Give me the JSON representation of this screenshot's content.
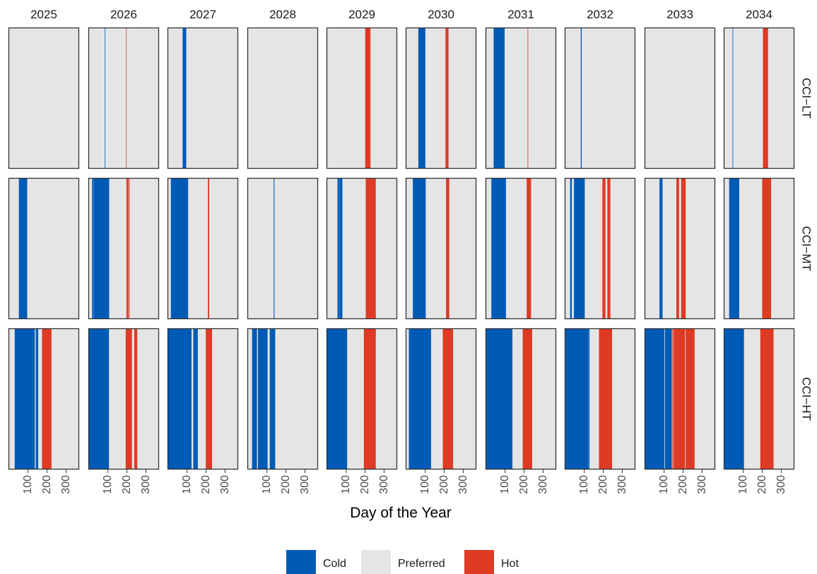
{
  "chart_data": {
    "type": "heatmap",
    "xlabel": "Day of the Year",
    "x_domain": [
      1,
      365
    ],
    "x_ticks": [
      100,
      200,
      300
    ],
    "x_tick_labels": [
      "100",
      "200",
      "300"
    ],
    "years": [
      "2025",
      "2026",
      "2027",
      "2028",
      "2029",
      "2030",
      "2031",
      "2032",
      "2033",
      "2034"
    ],
    "rows": [
      "CCI-LT",
      "CCI-MT",
      "CCI-HT"
    ],
    "row_labels": [
      "CCI−LT",
      "CCI−MT",
      "CCI−HT"
    ],
    "categories": [
      "Cold",
      "Preferred",
      "Hot"
    ],
    "legend": {
      "position": "bottom",
      "items": [
        {
          "key": "cold",
          "label": "Cold"
        },
        {
          "key": "preferred",
          "label": "Preferred"
        },
        {
          "key": "hot",
          "label": "Hot"
        }
      ]
    },
    "colors": {
      "Cold": "#005BB7",
      "Preferred": "#E5E5E5",
      "Hot": "#DE3A24"
    },
    "panels": {
      "CCI-LT": {
        "2025": {
          "cold": [],
          "hot": []
        },
        "2026": {
          "cold": [
            [
              84,
              86
            ]
          ],
          "hot": [
            [
              196,
              197
            ]
          ]
        },
        "2027": {
          "cold": [
            [
              77,
              95
            ]
          ],
          "hot": []
        },
        "2028": {
          "cold": [],
          "hot": []
        },
        "2029": {
          "cold": [],
          "hot": [
            [
              201,
              228
            ]
          ]
        },
        "2030": {
          "cold": [
            [
              64,
              100
            ]
          ],
          "hot": [
            [
              207,
              222
            ]
          ]
        },
        "2031": {
          "cold": [
            [
              40,
              97
            ]
          ],
          "hot": [
            [
              219,
              221
            ]
          ]
        },
        "2032": {
          "cold": [
            [
              82,
              86
            ]
          ],
          "hot": []
        },
        "2033": {
          "cold": [],
          "hot": []
        },
        "2034": {
          "cold": [
            [
              44,
              46
            ]
          ],
          "hot": [
            [
              204,
              230
            ]
          ]
        }
      },
      "CCI-MT": {
        "2025": {
          "cold": [
            [
              52,
              95
            ]
          ],
          "hot": []
        },
        "2026": {
          "cold": [
            [
              17,
              25
            ],
            [
              27,
              106
            ]
          ],
          "hot": [
            [
              198,
              206
            ],
            [
              209,
              213
            ]
          ]
        },
        "2027": {
          "cold": [
            [
              15,
              105
            ]
          ],
          "hot": [
            [
              210,
              216
            ]
          ]
        },
        "2028": {
          "cold": [
            [
              136,
              139
            ]
          ],
          "hot": []
        },
        "2029": {
          "cold": [
            [
              55,
              66
            ],
            [
              68,
              80
            ]
          ],
          "hot": [
            [
              204,
              256
            ]
          ]
        },
        "2030": {
          "cold": [
            [
              35,
              102
            ]
          ],
          "hot": [
            [
              210,
              226
            ]
          ]
        },
        "2031": {
          "cold": [
            [
              28,
              104
            ]
          ],
          "hot": [
            [
              214,
              236
            ]
          ]
        },
        "2032": {
          "cold": [
            [
              26,
              34
            ],
            [
              46,
              102
            ]
          ],
          "hot": [
            [
              196,
              211
            ],
            [
              222,
              237
            ]
          ]
        },
        "2033": {
          "cold": [
            [
              76,
              91
            ]
          ],
          "hot": [
            [
              165,
              178
            ],
            [
              190,
              213
            ]
          ]
        },
        "2034": {
          "cold": [
            [
              26,
              78
            ]
          ],
          "hot": [
            [
              200,
              246
            ]
          ]
        }
      },
      "CCI-HT": {
        "2025": {
          "cold": [
            [
              30,
              135
            ],
            [
              141,
              153
            ]
          ],
          "hot": [
            [
              174,
              223
            ]
          ]
        },
        "2026": {
          "cold": [
            [
              1,
              105
            ]
          ],
          "hot": [
            [
              194,
              226
            ],
            [
              239,
              254
            ]
          ]
        },
        "2027": {
          "cold": [
            [
              1,
              123
            ],
            [
              133,
              156
            ]
          ],
          "hot": [
            [
              199,
              231
            ]
          ]
        },
        "2028": {
          "cold": [
            [
              22,
              47
            ],
            [
              53,
              103
            ],
            [
              115,
              143
            ]
          ],
          "hot": []
        },
        "2029": {
          "cold": [
            [
              1,
              105
            ]
          ],
          "hot": [
            [
              194,
              256
            ]
          ]
        },
        "2030": {
          "cold": [
            [
              14,
              130
            ]
          ],
          "hot": [
            [
              193,
              246
            ]
          ]
        },
        "2031": {
          "cold": [
            [
              1,
              138
            ]
          ],
          "hot": [
            [
              193,
              242
            ]
          ]
        },
        "2032": {
          "cold": [
            [
              1,
              122
            ],
            [
              124,
              127
            ]
          ],
          "hot": [
            [
              178,
              246
            ]
          ]
        },
        "2033": {
          "cold": [
            [
              1,
              101
            ],
            [
              105,
              140
            ]
          ],
          "hot": [
            [
              144,
              148
            ],
            [
              151,
              210
            ],
            [
              214,
              260
            ]
          ]
        },
        "2034": {
          "cold": [
            [
              1,
              103
            ]
          ],
          "hot": [
            [
              190,
              259
            ]
          ]
        }
      }
    }
  }
}
